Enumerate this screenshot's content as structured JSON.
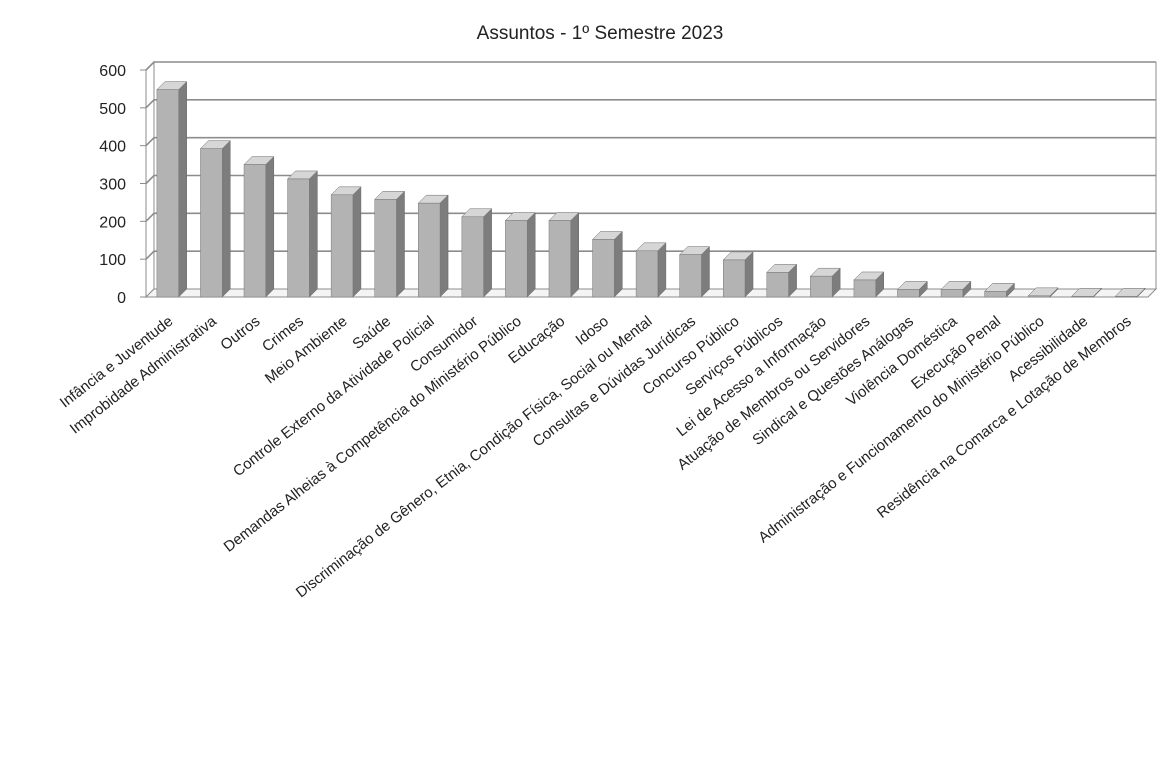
{
  "chart_data": {
    "type": "bar",
    "title": "Assuntos - 1º Semestre 2023",
    "xlabel": "",
    "ylabel": "",
    "ylim": [
      0,
      600
    ],
    "yticks": [
      0,
      100,
      200,
      300,
      400,
      500,
      600
    ],
    "grid": true,
    "legend": "none",
    "bar_style": "3d",
    "colors": {
      "bar": "#b3b3b3",
      "grid": "#8c8c8c"
    },
    "categories": [
      "Infância e Juventude",
      "Improbidade Administrativa",
      "Outros",
      "Crimes",
      "Meio Ambiente",
      "Saúde",
      "Controle Externo da Atividade Policial",
      "Consumidor",
      "Demandas Alheias à Competência do Ministério Público",
      "Educação",
      "Idoso",
      "Discriminação de Gênero, Etnia, Condição Física, Social ou Mental",
      "Consultas e Dúvidas Jurídicas",
      "Concurso Público",
      "Serviços Públicos",
      "Lei de Acesso a Informação",
      "Atuação de Membros ou Servidores",
      "Sindical e Questões Análogas",
      "Violência Doméstica",
      "Execução Penal",
      "Administração e Funcionamento do Ministério Público",
      "Acessibilidade",
      "Residência na Comarca e Lotação de Membros"
    ],
    "values": [
      548,
      392,
      350,
      312,
      270,
      258,
      248,
      212,
      202,
      202,
      152,
      122,
      112,
      98,
      65,
      55,
      45,
      20,
      20,
      15,
      3,
      2,
      2
    ]
  }
}
